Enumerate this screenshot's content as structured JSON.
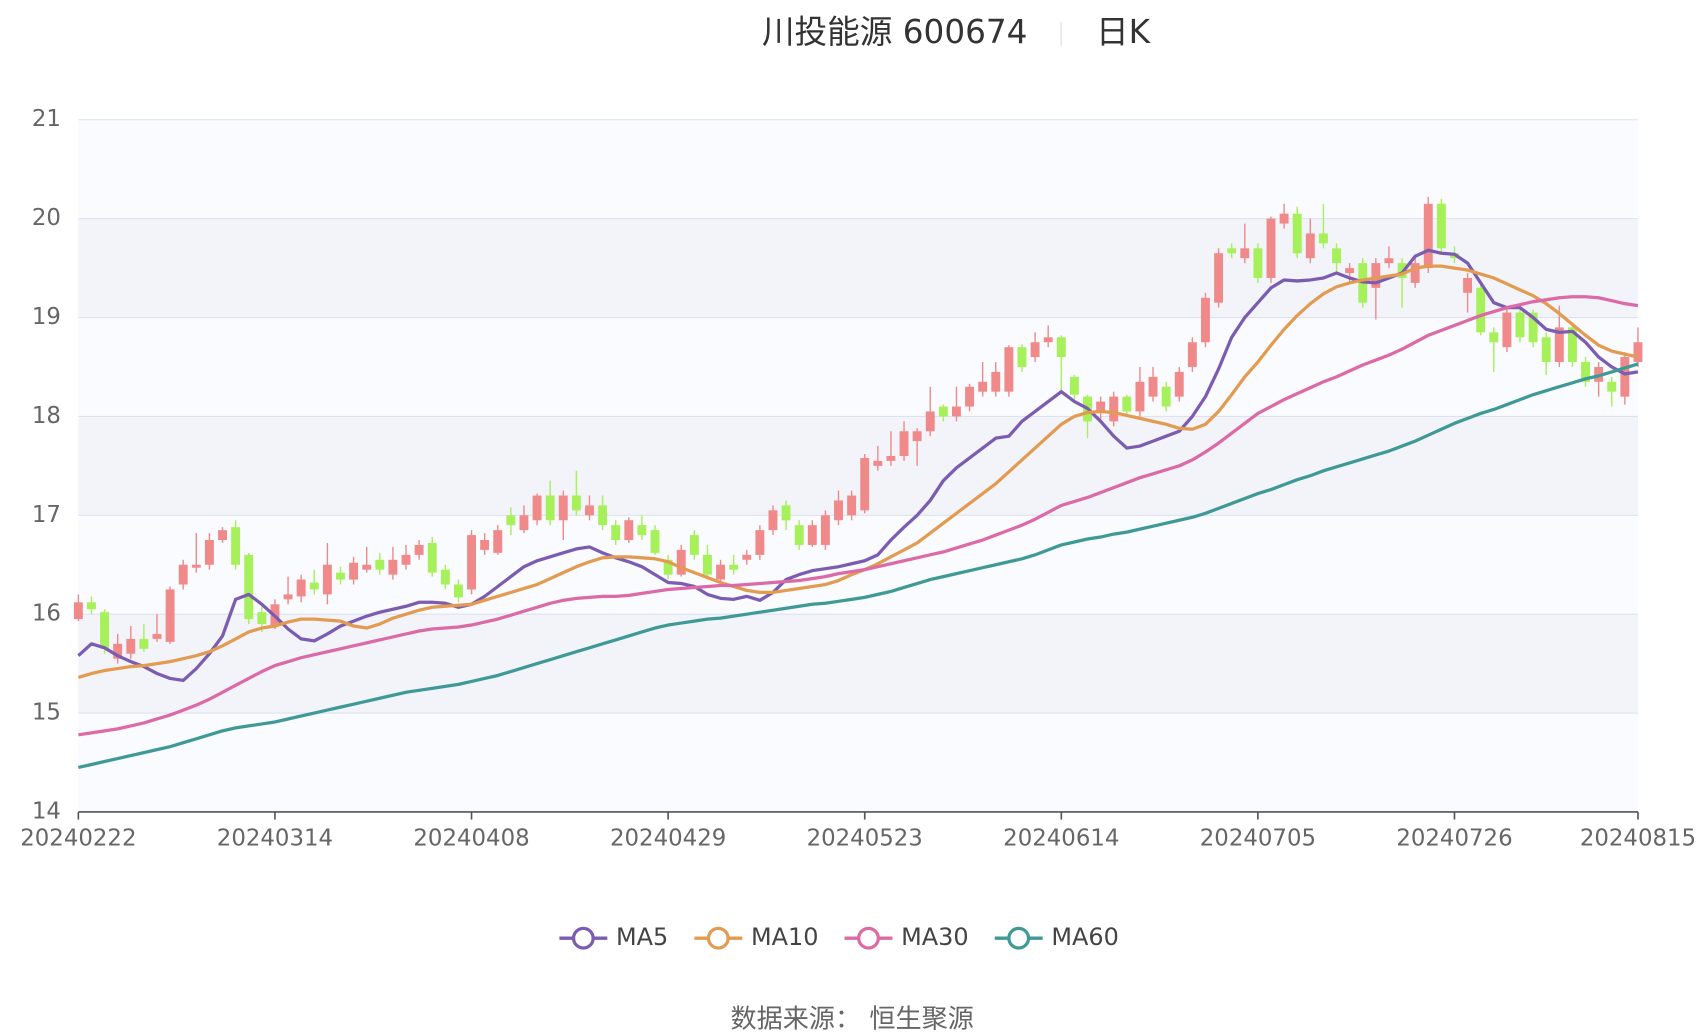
{
  "chart_data": {
    "type": "candlestick",
    "title": "川投能源 600674",
    "subtitle": "日K",
    "source": "数据来源：  恒生聚源",
    "categories": [
      "20240222",
      null,
      null,
      null,
      null,
      null,
      null,
      null,
      null,
      null,
      null,
      null,
      null,
      null,
      null,
      "20240314",
      null,
      null,
      null,
      null,
      null,
      null,
      null,
      null,
      null,
      null,
      null,
      null,
      null,
      null,
      "20240408",
      null,
      null,
      null,
      null,
      null,
      null,
      null,
      null,
      null,
      null,
      null,
      null,
      null,
      null,
      "20240429",
      null,
      null,
      null,
      null,
      null,
      null,
      null,
      null,
      null,
      null,
      null,
      null,
      null,
      null,
      "20240523",
      null,
      null,
      null,
      null,
      null,
      null,
      null,
      null,
      null,
      null,
      null,
      null,
      null,
      null,
      "20240614",
      null,
      null,
      null,
      null,
      null,
      null,
      null,
      null,
      null,
      null,
      null,
      null,
      null,
      null,
      "20240705",
      null,
      null,
      null,
      null,
      null,
      null,
      null,
      null,
      null,
      null,
      null,
      null,
      null,
      null,
      "20240726",
      null,
      null,
      null,
      null,
      null,
      null,
      null,
      null,
      null,
      null,
      null,
      null,
      null,
      "20240815"
    ],
    "candle_order": [
      "open",
      "close",
      "low",
      "high"
    ],
    "up_color": "#f08a8a",
    "down_color": "#a6f05a",
    "candles": [
      [
        15.95,
        16.12,
        15.93,
        16.2
      ],
      [
        16.12,
        16.05,
        16.0,
        16.18
      ],
      [
        16.02,
        15.65,
        15.6,
        16.05
      ],
      [
        15.55,
        15.7,
        15.5,
        15.8
      ],
      [
        15.6,
        15.75,
        15.55,
        15.88
      ],
      [
        15.75,
        15.65,
        15.62,
        15.9
      ],
      [
        15.75,
        15.8,
        15.72,
        16.0
      ],
      [
        15.72,
        16.25,
        15.7,
        16.28
      ],
      [
        16.3,
        16.5,
        16.25,
        16.55
      ],
      [
        16.47,
        16.5,
        16.42,
        16.82
      ],
      [
        16.5,
        16.75,
        16.45,
        16.82
      ],
      [
        16.75,
        16.85,
        16.72,
        16.88
      ],
      [
        16.88,
        16.5,
        16.45,
        16.95
      ],
      [
        16.6,
        15.95,
        15.9,
        16.62
      ],
      [
        16.02,
        15.9,
        15.82,
        16.1
      ],
      [
        15.88,
        16.1,
        15.85,
        16.15
      ],
      [
        16.15,
        16.2,
        16.1,
        16.38
      ],
      [
        16.18,
        16.35,
        16.12,
        16.4
      ],
      [
        16.32,
        16.25,
        16.2,
        16.45
      ],
      [
        16.2,
        16.5,
        16.1,
        16.72
      ],
      [
        16.42,
        16.35,
        16.3,
        16.48
      ],
      [
        16.35,
        16.52,
        16.3,
        16.58
      ],
      [
        16.45,
        16.5,
        16.42,
        16.68
      ],
      [
        16.55,
        16.45,
        16.4,
        16.62
      ],
      [
        16.4,
        16.55,
        16.35,
        16.68
      ],
      [
        16.5,
        16.6,
        16.45,
        16.7
      ],
      [
        16.6,
        16.7,
        16.55,
        16.75
      ],
      [
        16.72,
        16.42,
        16.38,
        16.78
      ],
      [
        16.45,
        16.3,
        16.25,
        16.5
      ],
      [
        16.3,
        16.17,
        16.12,
        16.35
      ],
      [
        16.25,
        16.8,
        16.2,
        16.85
      ],
      [
        16.65,
        16.75,
        16.6,
        16.82
      ],
      [
        16.62,
        16.85,
        16.6,
        16.9
      ],
      [
        17.0,
        16.9,
        16.8,
        17.08
      ],
      [
        16.85,
        17.0,
        16.82,
        17.1
      ],
      [
        16.95,
        17.2,
        16.9,
        17.22
      ],
      [
        17.2,
        16.95,
        16.9,
        17.35
      ],
      [
        16.95,
        17.2,
        16.75,
        17.25
      ],
      [
        17.2,
        17.05,
        17.0,
        17.45
      ],
      [
        17.0,
        17.1,
        16.95,
        17.2
      ],
      [
        17.1,
        16.9,
        16.85,
        17.2
      ],
      [
        16.9,
        16.75,
        16.7,
        16.95
      ],
      [
        16.75,
        16.95,
        16.72,
        16.98
      ],
      [
        16.9,
        16.8,
        16.75,
        17.0
      ],
      [
        16.85,
        16.62,
        16.6,
        16.9
      ],
      [
        16.55,
        16.4,
        16.35,
        16.6
      ],
      [
        16.4,
        16.65,
        16.38,
        16.7
      ],
      [
        16.8,
        16.6,
        16.55,
        16.85
      ],
      [
        16.6,
        16.4,
        16.35,
        16.7
      ],
      [
        16.35,
        16.5,
        16.32,
        16.55
      ],
      [
        16.5,
        16.45,
        16.4,
        16.6
      ],
      [
        16.55,
        16.6,
        16.5,
        16.65
      ],
      [
        16.6,
        16.85,
        16.55,
        16.9
      ],
      [
        16.85,
        17.05,
        16.8,
        17.1
      ],
      [
        17.1,
        16.95,
        16.85,
        17.15
      ],
      [
        16.9,
        16.7,
        16.65,
        16.95
      ],
      [
        16.7,
        16.9,
        16.68,
        16.95
      ],
      [
        16.7,
        17.0,
        16.65,
        17.05
      ],
      [
        16.95,
        17.15,
        16.9,
        17.25
      ],
      [
        17.0,
        17.2,
        16.95,
        17.25
      ],
      [
        17.05,
        17.58,
        17.02,
        17.62
      ],
      [
        17.5,
        17.55,
        17.45,
        17.7
      ],
      [
        17.55,
        17.6,
        17.5,
        17.85
      ],
      [
        17.6,
        17.85,
        17.55,
        17.95
      ],
      [
        17.75,
        17.85,
        17.5,
        17.88
      ],
      [
        17.85,
        18.05,
        17.8,
        18.3
      ],
      [
        18.1,
        18.0,
        17.95,
        18.12
      ],
      [
        18.0,
        18.1,
        17.95,
        18.3
      ],
      [
        18.1,
        18.3,
        18.05,
        18.33
      ],
      [
        18.25,
        18.35,
        18.2,
        18.55
      ],
      [
        18.25,
        18.45,
        18.2,
        18.55
      ],
      [
        18.25,
        18.7,
        18.2,
        18.72
      ],
      [
        18.7,
        18.5,
        18.45,
        18.73
      ],
      [
        18.6,
        18.75,
        18.55,
        18.85
      ],
      [
        18.75,
        18.8,
        18.7,
        18.92
      ],
      [
        18.8,
        18.6,
        18.25,
        18.82
      ],
      [
        18.4,
        18.22,
        18.15,
        18.42
      ],
      [
        18.2,
        17.95,
        17.78,
        18.22
      ],
      [
        18.05,
        18.15,
        17.95,
        18.2
      ],
      [
        17.95,
        18.2,
        17.9,
        18.25
      ],
      [
        18.2,
        18.05,
        18.0,
        18.22
      ],
      [
        18.05,
        18.35,
        18.0,
        18.5
      ],
      [
        18.2,
        18.4,
        18.15,
        18.5
      ],
      [
        18.3,
        18.1,
        18.05,
        18.35
      ],
      [
        18.2,
        18.45,
        18.15,
        18.5
      ],
      [
        18.5,
        18.75,
        18.45,
        18.8
      ],
      [
        18.75,
        19.2,
        18.7,
        19.25
      ],
      [
        19.15,
        19.65,
        19.1,
        19.7
      ],
      [
        19.7,
        19.65,
        19.6,
        19.75
      ],
      [
        19.6,
        19.7,
        19.55,
        19.95
      ],
      [
        19.7,
        19.4,
        19.35,
        19.75
      ],
      [
        19.4,
        20.0,
        19.35,
        20.02
      ],
      [
        19.95,
        20.05,
        19.9,
        20.15
      ],
      [
        20.05,
        19.65,
        19.6,
        20.12
      ],
      [
        19.6,
        19.85,
        19.55,
        20.0
      ],
      [
        19.85,
        19.75,
        19.7,
        20.15
      ],
      [
        19.7,
        19.55,
        19.45,
        19.75
      ],
      [
        19.45,
        19.5,
        19.35,
        19.55
      ],
      [
        19.55,
        19.15,
        19.1,
        19.6
      ],
      [
        19.3,
        19.55,
        18.98,
        19.6
      ],
      [
        19.55,
        19.6,
        19.5,
        19.72
      ],
      [
        19.55,
        19.4,
        19.1,
        19.6
      ],
      [
        19.35,
        19.55,
        19.3,
        19.6
      ],
      [
        19.5,
        20.15,
        19.45,
        20.22
      ],
      [
        20.15,
        19.7,
        19.65,
        20.2
      ],
      [
        19.65,
        19.6,
        19.55,
        19.72
      ],
      [
        19.25,
        19.4,
        19.05,
        19.45
      ],
      [
        19.3,
        18.85,
        18.82,
        19.35
      ],
      [
        18.85,
        18.75,
        18.45,
        18.9
      ],
      [
        18.7,
        19.05,
        18.65,
        19.1
      ],
      [
        19.05,
        18.8,
        18.75,
        19.1
      ],
      [
        19.05,
        18.75,
        18.7,
        19.08
      ],
      [
        18.8,
        18.55,
        18.42,
        18.85
      ],
      [
        18.55,
        18.9,
        18.5,
        19.12
      ],
      [
        18.9,
        18.55,
        18.5,
        18.95
      ],
      [
        18.55,
        18.35,
        18.3,
        18.6
      ],
      [
        18.35,
        18.5,
        18.2,
        18.55
      ],
      [
        18.35,
        18.25,
        18.1,
        18.4
      ],
      [
        18.2,
        18.6,
        18.12,
        18.65
      ],
      [
        18.55,
        18.75,
        18.5,
        18.9
      ]
    ],
    "series": [
      {
        "name": "MA5",
        "color": "#7b5cb0",
        "values": [
          15.58,
          15.7,
          15.66,
          15.58,
          15.52,
          15.47,
          15.4,
          15.35,
          15.33,
          15.45,
          15.6,
          15.78,
          16.15,
          16.2,
          16.1,
          15.98,
          15.85,
          15.75,
          15.73,
          15.8,
          15.88,
          15.93,
          15.98,
          16.02,
          16.05,
          16.08,
          16.12,
          16.12,
          16.11,
          16.07,
          16.1,
          16.18,
          16.28,
          16.38,
          16.48,
          16.54,
          16.58,
          16.62,
          16.66,
          16.68,
          16.62,
          16.57,
          16.53,
          16.48,
          16.4,
          16.32,
          16.31,
          16.28,
          16.2,
          16.16,
          16.15,
          16.18,
          16.14,
          16.22,
          16.35,
          16.4,
          16.44,
          16.46,
          16.48,
          16.51,
          16.54,
          16.6,
          16.75,
          16.88,
          17.0,
          17.15,
          17.35,
          17.48,
          17.58,
          17.68,
          17.78,
          17.8,
          17.95,
          18.05,
          18.15,
          18.25,
          18.15,
          18.08,
          17.95,
          17.8,
          17.68,
          17.7,
          17.75,
          17.8,
          17.85,
          18.0,
          18.2,
          18.48,
          18.8,
          19.0,
          19.15,
          19.3,
          19.38,
          19.37,
          19.38,
          19.4,
          19.45,
          19.4,
          19.36,
          19.35,
          19.4,
          19.45,
          19.62,
          19.68,
          19.65,
          19.64,
          19.55,
          19.35,
          19.15,
          19.1,
          19.1,
          19.0,
          18.88,
          18.85,
          18.86,
          18.75,
          18.6,
          18.5,
          18.43,
          18.45
        ]
      },
      {
        "name": "MA10",
        "color": "#e39b52",
        "values": [
          15.36,
          15.4,
          15.43,
          15.45,
          15.47,
          15.48,
          15.5,
          15.52,
          15.55,
          15.58,
          15.62,
          15.68,
          15.75,
          15.82,
          15.86,
          15.88,
          15.92,
          15.95,
          15.95,
          15.94,
          15.93,
          15.88,
          15.86,
          15.9,
          15.96,
          16.0,
          16.04,
          16.07,
          16.08,
          16.09,
          16.1,
          16.14,
          16.18,
          16.22,
          16.26,
          16.3,
          16.36,
          16.42,
          16.48,
          16.53,
          16.57,
          16.58,
          16.58,
          16.57,
          16.56,
          16.53,
          16.47,
          16.42,
          16.37,
          16.32,
          16.28,
          16.24,
          16.22,
          16.22,
          16.24,
          16.26,
          16.28,
          16.3,
          16.34,
          16.4,
          16.45,
          16.51,
          16.58,
          16.65,
          16.72,
          16.82,
          16.92,
          17.02,
          17.12,
          17.22,
          17.32,
          17.44,
          17.56,
          17.68,
          17.8,
          17.92,
          18.0,
          18.04,
          18.05,
          18.04,
          18.01,
          17.98,
          17.95,
          17.92,
          17.88,
          17.87,
          17.92,
          18.05,
          18.22,
          18.4,
          18.55,
          18.72,
          18.88,
          19.02,
          19.14,
          19.24,
          19.31,
          19.35,
          19.38,
          19.4,
          19.42,
          19.44,
          19.5,
          19.52,
          19.52,
          19.5,
          19.48,
          19.44,
          19.4,
          19.34,
          19.28,
          19.22,
          19.14,
          19.04,
          18.93,
          18.82,
          18.72,
          18.66,
          18.63,
          18.6
        ]
      },
      {
        "name": "MA30",
        "color": "#dc6aa6",
        "values": [
          14.78,
          14.8,
          14.82,
          14.84,
          14.87,
          14.9,
          14.94,
          14.98,
          15.03,
          15.08,
          15.14,
          15.21,
          15.28,
          15.35,
          15.42,
          15.48,
          15.52,
          15.56,
          15.59,
          15.62,
          15.65,
          15.68,
          15.71,
          15.74,
          15.77,
          15.8,
          15.83,
          15.85,
          15.86,
          15.87,
          15.89,
          15.92,
          15.95,
          15.99,
          16.03,
          16.07,
          16.11,
          16.14,
          16.16,
          16.17,
          16.18,
          16.18,
          16.19,
          16.21,
          16.23,
          16.25,
          16.26,
          16.27,
          16.28,
          16.29,
          16.29,
          16.3,
          16.31,
          16.32,
          16.33,
          16.34,
          16.36,
          16.38,
          16.41,
          16.43,
          16.45,
          16.48,
          16.51,
          16.54,
          16.57,
          16.6,
          16.63,
          16.67,
          16.71,
          16.75,
          16.8,
          16.85,
          16.9,
          16.96,
          17.03,
          17.1,
          17.14,
          17.18,
          17.23,
          17.28,
          17.33,
          17.38,
          17.42,
          17.46,
          17.5,
          17.56,
          17.64,
          17.73,
          17.83,
          17.93,
          18.03,
          18.1,
          18.17,
          18.23,
          18.29,
          18.35,
          18.4,
          18.46,
          18.52,
          18.57,
          18.62,
          18.68,
          18.75,
          18.82,
          18.87,
          18.92,
          18.97,
          19.02,
          19.06,
          19.1,
          19.13,
          19.16,
          19.18,
          19.2,
          19.21,
          19.21,
          19.2,
          19.17,
          19.14,
          19.12
        ]
      },
      {
        "name": "MA60",
        "color": "#3f9a97",
        "values": [
          14.45,
          14.48,
          14.51,
          14.54,
          14.57,
          14.6,
          14.63,
          14.66,
          14.7,
          14.74,
          14.78,
          14.82,
          14.85,
          14.87,
          14.89,
          14.91,
          14.94,
          14.97,
          15.0,
          15.03,
          15.06,
          15.09,
          15.12,
          15.15,
          15.18,
          15.21,
          15.23,
          15.25,
          15.27,
          15.29,
          15.32,
          15.35,
          15.38,
          15.42,
          15.46,
          15.5,
          15.54,
          15.58,
          15.62,
          15.66,
          15.7,
          15.74,
          15.78,
          15.82,
          15.86,
          15.89,
          15.91,
          15.93,
          15.95,
          15.96,
          15.98,
          16.0,
          16.02,
          16.04,
          16.06,
          16.08,
          16.1,
          16.11,
          16.13,
          16.15,
          16.17,
          16.2,
          16.23,
          16.27,
          16.31,
          16.35,
          16.38,
          16.41,
          16.44,
          16.47,
          16.5,
          16.53,
          16.56,
          16.6,
          16.65,
          16.7,
          16.73,
          16.76,
          16.78,
          16.81,
          16.83,
          16.86,
          16.89,
          16.92,
          16.95,
          16.98,
          17.02,
          17.07,
          17.12,
          17.17,
          17.22,
          17.26,
          17.31,
          17.36,
          17.4,
          17.45,
          17.49,
          17.53,
          17.57,
          17.61,
          17.65,
          17.7,
          17.75,
          17.81,
          17.87,
          17.93,
          17.98,
          18.03,
          18.07,
          18.12,
          18.17,
          18.22,
          18.26,
          18.3,
          18.34,
          18.38,
          18.41,
          18.45,
          18.49,
          18.53
        ]
      }
    ],
    "ylim": [
      14,
      21
    ],
    "yticks": [
      14,
      15,
      16,
      17,
      18,
      19,
      20,
      21
    ],
    "grid": true
  }
}
